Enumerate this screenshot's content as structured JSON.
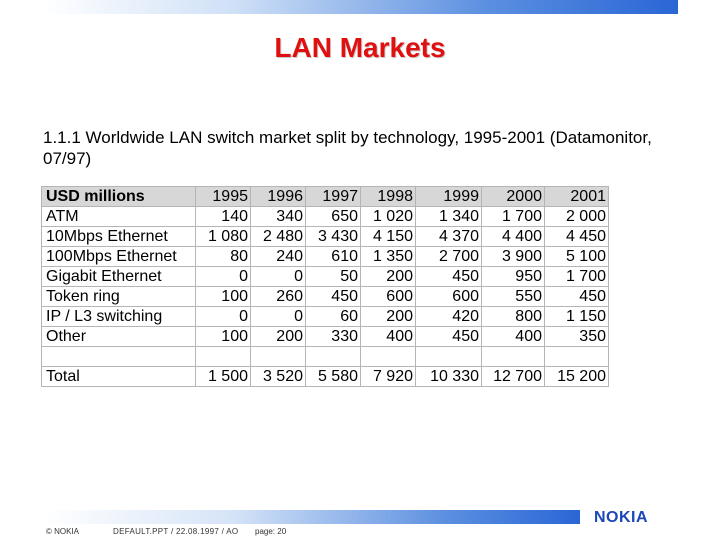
{
  "slide": {
    "title": "LAN Markets",
    "subtitle": "1.1.1  Worldwide LAN switch market split by technology, 1995-2001 (Datamonitor, 07/97)"
  },
  "table": {
    "header": [
      "USD millions",
      "1995",
      "1996",
      "1997",
      "1998",
      "1999",
      "2000",
      "2001"
    ],
    "rows": [
      [
        "ATM",
        "140",
        "340",
        "650",
        "1 020",
        "1 340",
        "1 700",
        "2 000"
      ],
      [
        "10Mbps Ethernet",
        "1 080",
        "2 480",
        "3 430",
        "4 150",
        "4 370",
        "4 400",
        "4 450"
      ],
      [
        "100Mbps Ethernet",
        "80",
        "240",
        "610",
        "1 350",
        "2 700",
        "3 900",
        "5 100"
      ],
      [
        "Gigabit Ethernet",
        "0",
        "0",
        "50",
        "200",
        "450",
        "950",
        "1 700"
      ],
      [
        "Token ring",
        "100",
        "260",
        "450",
        "600",
        "600",
        "550",
        "450"
      ],
      [
        "IP / L3 switching",
        "0",
        "0",
        "60",
        "200",
        "420",
        "800",
        "1 150"
      ],
      [
        "Other",
        "100",
        "200",
        "330",
        "400",
        "450",
        "400",
        "350"
      ]
    ],
    "total": [
      "Total",
      "1 500",
      "3 520",
      "5 580",
      "7 920",
      "10 330",
      "12 700",
      "15 200"
    ]
  },
  "footer": {
    "copyright": "© NOKIA",
    "document": "DEFAULT.PPT / 22.08.1997 / AO",
    "page": "page: 20",
    "logo": "NOKIA"
  },
  "colors": {
    "title": "#e01010",
    "header_fill": "#d7d7d7",
    "bar_blue": "#2a66d6",
    "logo": "#1c47b8"
  }
}
